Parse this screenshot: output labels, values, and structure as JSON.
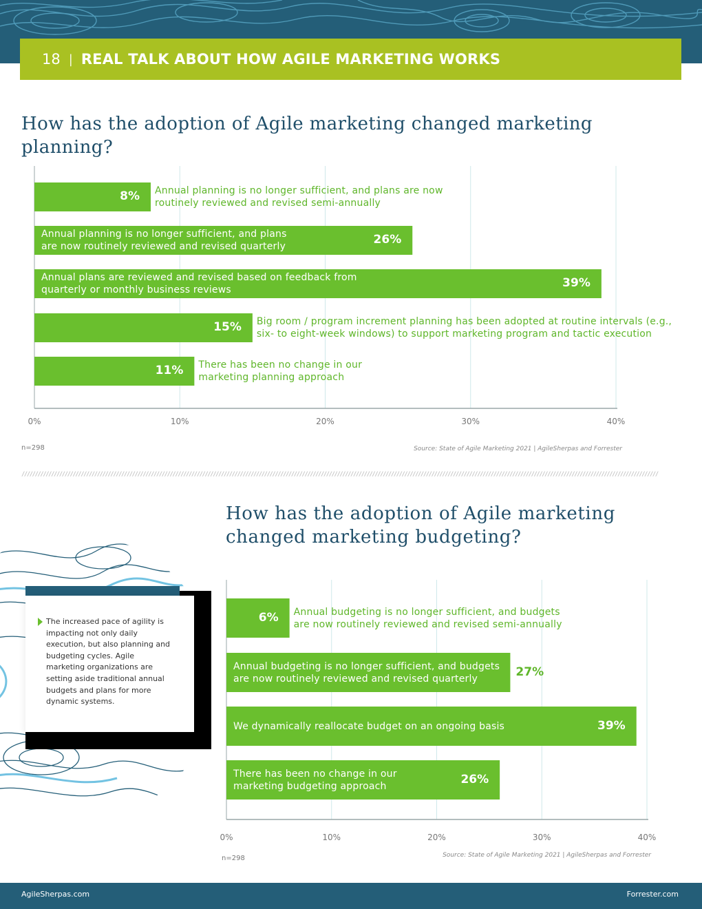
{
  "header": {
    "page_number": "18",
    "separator": "|",
    "title": "REAL TALK ABOUT HOW AGILE MARKETING WORKS"
  },
  "colors": {
    "bar": "#6abf2e",
    "header_bar": "#a9c122",
    "band": "#245e78",
    "title": "#1f4e69"
  },
  "section1": {
    "title": "How has the adoption of Agile marketing changed marketing planning?",
    "n_label": "n=298",
    "source": "Source: State of Agile Marketing 2021 | AgileSherpas and Forrester"
  },
  "section2": {
    "title": "How has the adoption of Agile marketing changed marketing budgeting?",
    "n_label": "n=298",
    "source": "Source: State of Agile Marketing 2021 | AgileSherpas and Forrester"
  },
  "callout": {
    "text": "The increased pace of agility is impacting not only daily execution, but also planning and budgeting cycles. Agile marketing organizations are setting aside traditional annual budgets and plans for more dynamic systems."
  },
  "footer": {
    "left": "AgileSherpas.com",
    "right": "Forrester.com"
  },
  "chart_data": [
    {
      "type": "bar",
      "orientation": "horizontal",
      "title": "How has the adoption of Agile marketing changed marketing planning?",
      "categories": [
        "Annual planning is no longer sufficient, and plans are now routinely reviewed and revised semi-annually",
        "Annual planning is no longer sufficient, and plans are now routinely reviewed and revised quarterly",
        "Annual plans are reviewed and revised based on feedback from quarterly or monthly business reviews",
        "Big room / program increment planning has been adopted at routine intervals (e.g., six- to eight-week windows) to support marketing program and tactic execution",
        "There has been no change in our marketing planning approach"
      ],
      "label_lines": [
        [
          "Annual planning is no longer sufficient, and plans are now",
          "routinely reviewed and revised semi-annually"
        ],
        [
          "Annual planning is no longer sufficient, and plans",
          "are now routinely reviewed and revised quarterly"
        ],
        [
          "Annual plans are reviewed and revised based on feedback from",
          "quarterly or monthly business reviews"
        ],
        [
          "Big room / program increment planning has been adopted at routine intervals (e.g.,",
          "six- to eight-week windows) to support marketing program and tactic execution"
        ],
        [
          "There has been no change in our",
          "marketing planning approach"
        ]
      ],
      "values": [
        8,
        26,
        39,
        15,
        11
      ],
      "value_labels": [
        "8%",
        "26%",
        "39%",
        "15%",
        "11%"
      ],
      "label_inside": [
        false,
        true,
        true,
        false,
        false
      ],
      "value_outside": [
        false,
        false,
        false,
        false,
        false
      ],
      "xlim": [
        0,
        40
      ],
      "ticks": [
        0,
        10,
        20,
        30,
        40
      ],
      "tick_labels": [
        "0%",
        "10%",
        "20%",
        "30%",
        "40%"
      ],
      "grid": true
    },
    {
      "type": "bar",
      "orientation": "horizontal",
      "title": "How has the adoption of Agile marketing changed marketing budgeting?",
      "categories": [
        "Annual budgeting is no longer sufficient, and budgets are now routinely reviewed and revised semi-annually",
        "Annual budgeting is no longer sufficient, and budgets are now routinely reviewed and revised quarterly",
        "We dynamically reallocate budget on an ongoing basis",
        "There has been no change in our marketing budgeting approach"
      ],
      "label_lines": [
        [
          "Annual budgeting is no longer sufficient, and budgets",
          "are now routinely reviewed and revised semi-annually"
        ],
        [
          "Annual budgeting is no longer sufficient, and budgets",
          "are now routinely reviewed and revised quarterly"
        ],
        [
          "We dynamically reallocate budget on an ongoing basis"
        ],
        [
          "There has been no change in our",
          "marketing budgeting approach"
        ]
      ],
      "values": [
        6,
        27,
        39,
        26
      ],
      "value_labels": [
        "6%",
        "27%",
        "39%",
        "26%"
      ],
      "label_inside": [
        false,
        true,
        true,
        true
      ],
      "value_outside": [
        false,
        true,
        false,
        false
      ],
      "xlim": [
        0,
        40
      ],
      "ticks": [
        0,
        10,
        20,
        30,
        40
      ],
      "tick_labels": [
        "0%",
        "10%",
        "20%",
        "30%",
        "40%"
      ],
      "grid": true
    }
  ]
}
